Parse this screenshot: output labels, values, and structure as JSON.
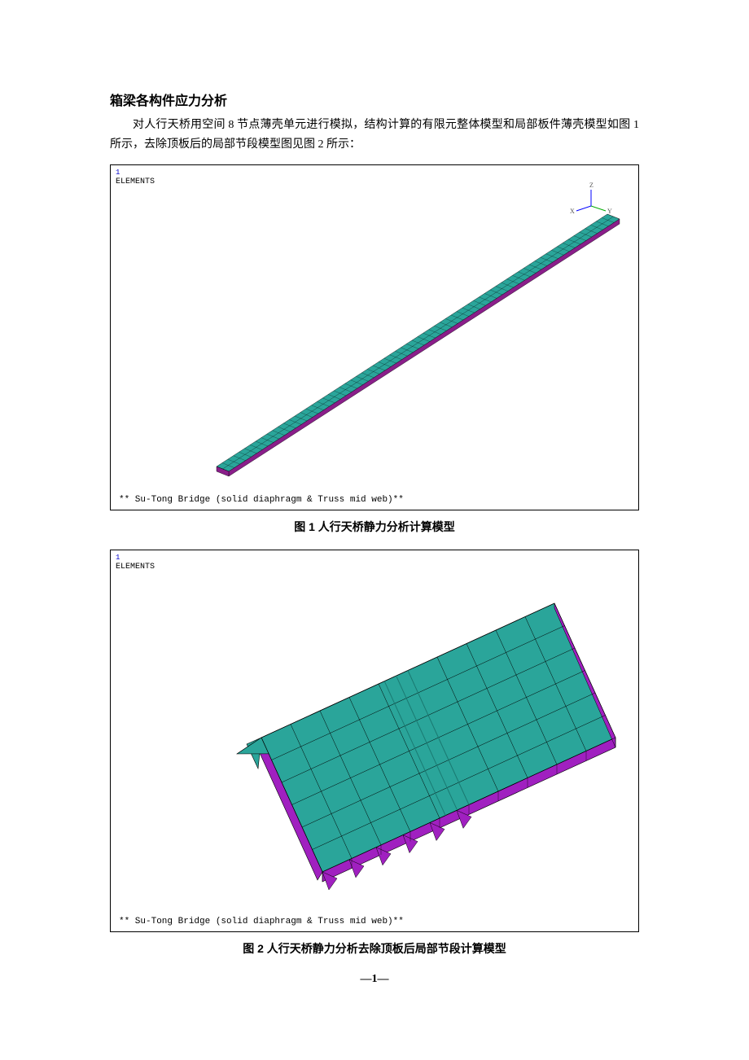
{
  "section_title": "箱梁各构件应力分析",
  "paragraph": "对人行天桥用空间 8 节点薄壳单元进行模拟，结构计算的有限元整体模型和局部板件薄壳模型如图 1 所示，去除顶板后的局部节段模型图见图 2 所示：",
  "figure1": {
    "top_label_num": "1",
    "top_label_text": "ELEMENTS",
    "footer_text": "** Su-Tong Bridge (solid diaphragm & Truss mid web)**",
    "colors": {
      "beam_fill": "#2aa59a",
      "beam_edge": "#8a1e8a",
      "mesh_line": "#000000",
      "axis_x": "#0000ff",
      "axis_y": "#00aa00",
      "axis_z": "#0000ff",
      "axis_label": "#444444"
    },
    "caption": "图 1 人行天桥静力分析计算模型"
  },
  "figure2": {
    "top_label_num": "1",
    "top_label_text": "ELEMENTS",
    "footer_text": "** Su-Tong Bridge (solid diaphragm & Truss mid web)**",
    "colors": {
      "deck_fill": "#2aa59a",
      "side_fill": "#a020c0",
      "mesh_line": "#000000",
      "inner_line": "#1a7a72"
    },
    "grid_cols": 10,
    "grid_rows": 6,
    "caption": "图 2 人行天桥静力分析去除顶板后局部节段计算模型"
  },
  "page_number": "―1―"
}
